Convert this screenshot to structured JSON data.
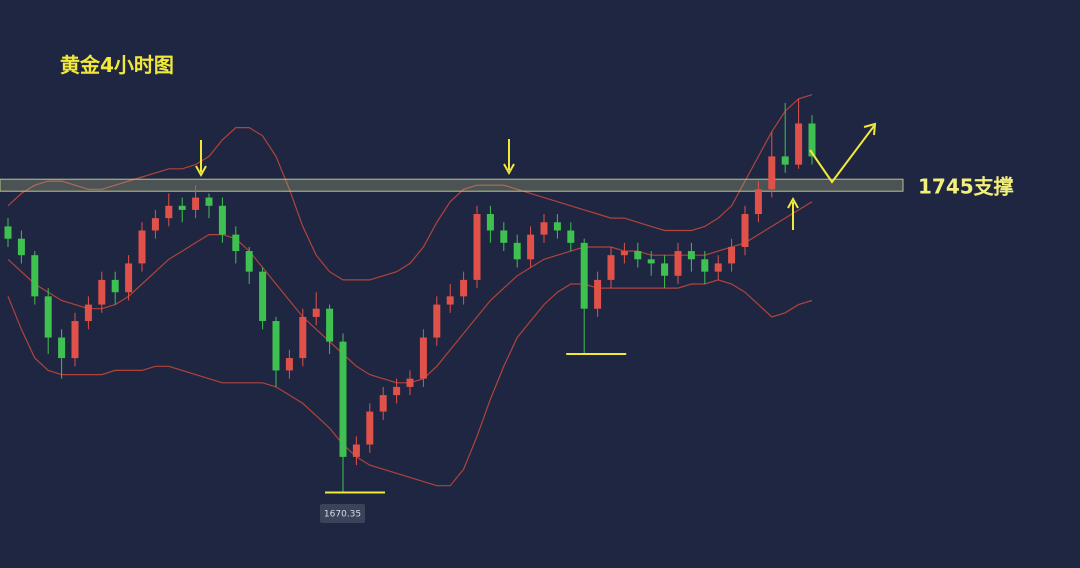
{
  "chart_data": {
    "type": "candlestick",
    "title": "黄金4小时图",
    "ylim": [
      1652,
      1790
    ],
    "up_color": "#e0514a",
    "down_color": "#3ec150",
    "open": [
      1735,
      1732,
      1728,
      1718,
      1708,
      1703,
      1712,
      1716,
      1722,
      1719,
      1726,
      1734,
      1737,
      1740,
      1739,
      1742,
      1740,
      1733,
      1729,
      1724,
      1712,
      1700,
      1703,
      1713,
      1715,
      1707,
      1679,
      1682,
      1690,
      1694,
      1696,
      1698,
      1708,
      1716,
      1718,
      1722,
      1738,
      1734,
      1731,
      1727,
      1733,
      1736,
      1734,
      1731,
      1715,
      1722,
      1728,
      1729,
      1727,
      1726,
      1723,
      1729,
      1727,
      1724,
      1726,
      1730,
      1738,
      1744,
      1752,
      1750,
      1760
    ],
    "high": [
      1737,
      1734,
      1729,
      1720,
      1710,
      1714,
      1718,
      1724,
      1724,
      1728,
      1736,
      1739,
      1743,
      1742,
      1745,
      1743,
      1742,
      1735,
      1730,
      1725,
      1713,
      1705,
      1715,
      1719,
      1716,
      1709,
      1684,
      1692,
      1696,
      1698,
      1700,
      1710,
      1718,
      1721,
      1724,
      1740,
      1740,
      1736,
      1733,
      1735,
      1738,
      1738,
      1736,
      1732,
      1724,
      1730,
      1731,
      1731,
      1729,
      1728,
      1731,
      1731,
      1729,
      1728,
      1732,
      1740,
      1746,
      1758,
      1765,
      1766,
      1762
    ],
    "low": [
      1730,
      1726,
      1716,
      1704,
      1698,
      1701,
      1710,
      1714,
      1716,
      1717,
      1724,
      1732,
      1735,
      1736,
      1737,
      1737,
      1731,
      1726,
      1721,
      1710,
      1696,
      1698,
      1701,
      1711,
      1704,
      1670.35,
      1677,
      1680,
      1688,
      1692,
      1694,
      1696,
      1706,
      1714,
      1716,
      1720,
      1731,
      1729,
      1725,
      1725,
      1731,
      1732,
      1729,
      1704,
      1713,
      1720,
      1726,
      1725,
      1723,
      1720,
      1721,
      1724,
      1721,
      1722,
      1724,
      1728,
      1736,
      1742,
      1748,
      1749,
      1750
    ],
    "close": [
      1732,
      1728,
      1718,
      1708,
      1703,
      1712,
      1716,
      1722,
      1719,
      1726,
      1734,
      1737,
      1740,
      1739,
      1742,
      1740,
      1733,
      1729,
      1724,
      1712,
      1700,
      1703,
      1713,
      1715,
      1707,
      1679,
      1682,
      1690,
      1694,
      1696,
      1698,
      1708,
      1716,
      1718,
      1722,
      1738,
      1734,
      1731,
      1727,
      1733,
      1736,
      1734,
      1731,
      1715,
      1722,
      1728,
      1729,
      1727,
      1726,
      1723,
      1729,
      1727,
      1724,
      1726,
      1730,
      1738,
      1744,
      1752,
      1750,
      1760,
      1752
    ],
    "bands": {
      "color": "#b0443a",
      "upper": [
        1740,
        1743,
        1745,
        1746,
        1746,
        1745,
        1744,
        1744,
        1745,
        1746,
        1747,
        1748,
        1749,
        1749,
        1750,
        1752,
        1756,
        1759,
        1759,
        1757,
        1752,
        1744,
        1735,
        1728,
        1724,
        1722,
        1722,
        1722,
        1723,
        1724,
        1726,
        1730,
        1736,
        1741,
        1744,
        1745,
        1745,
        1745,
        1744,
        1743,
        1742,
        1741,
        1740,
        1739,
        1738,
        1737,
        1737,
        1736,
        1735,
        1734,
        1734,
        1734,
        1735,
        1737,
        1740,
        1746,
        1752,
        1758,
        1763,
        1766,
        1767
      ],
      "middle": [
        1727,
        1724,
        1721,
        1719,
        1717,
        1716,
        1715,
        1715,
        1716,
        1718,
        1721,
        1724,
        1727,
        1729,
        1731,
        1733,
        1733,
        1732,
        1729,
        1725,
        1721,
        1717,
        1713,
        1710,
        1707,
        1704,
        1701,
        1699,
        1698,
        1697,
        1697,
        1698,
        1701,
        1705,
        1709,
        1713,
        1717,
        1720,
        1723,
        1725,
        1727,
        1728,
        1729,
        1730,
        1730,
        1730,
        1729,
        1729,
        1728,
        1728,
        1728,
        1728,
        1728,
        1729,
        1730,
        1731,
        1733,
        1735,
        1737,
        1739,
        1741
      ],
      "lower": [
        1718,
        1710,
        1703,
        1700,
        1699,
        1699,
        1699,
        1699,
        1700,
        1700,
        1700,
        1701,
        1701,
        1700,
        1699,
        1698,
        1697,
        1697,
        1697,
        1697,
        1696,
        1694,
        1692,
        1689,
        1686,
        1682,
        1679,
        1677,
        1676,
        1675,
        1674,
        1673,
        1672,
        1672,
        1676,
        1684,
        1693,
        1701,
        1708,
        1712,
        1716,
        1719,
        1721,
        1721,
        1720,
        1720,
        1720,
        1720,
        1720,
        1720,
        1720,
        1721,
        1721,
        1722,
        1721,
        1719,
        1716,
        1713,
        1714,
        1716,
        1717
      ]
    },
    "support_level": 1745,
    "support_label": "1745支撑",
    "low_label": "1670.35",
    "annotation_color": "#f2e83a"
  }
}
